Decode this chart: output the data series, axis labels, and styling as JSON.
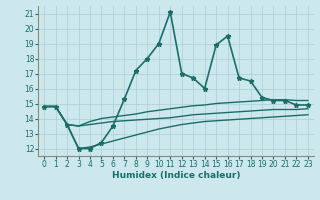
{
  "xlabel": "Humidex (Indice chaleur)",
  "bg_color": "#cde8ec",
  "grid_color": "#aacdd4",
  "line_color": "#1a6e68",
  "x_ticks": [
    0,
    1,
    2,
    3,
    4,
    5,
    6,
    7,
    8,
    9,
    10,
    11,
    12,
    13,
    14,
    15,
    16,
    17,
    18,
    19,
    20,
    21,
    22,
    23
  ],
  "ylim": [
    11.5,
    21.5
  ],
  "xlim": [
    -0.5,
    23.5
  ],
  "yticks": [
    12,
    13,
    14,
    15,
    16,
    17,
    18,
    19,
    20,
    21
  ],
  "series": [
    {
      "x": [
        0,
        1,
        2,
        3,
        4,
        5,
        6,
        7,
        8,
        9,
        10,
        11,
        12,
        13,
        14,
        15,
        16,
        17,
        18,
        19,
        20,
        21,
        22,
        23
      ],
      "y": [
        14.8,
        14.8,
        13.6,
        12.0,
        12.0,
        12.4,
        13.5,
        15.3,
        17.2,
        18.0,
        19.0,
        21.1,
        17.0,
        16.7,
        16.0,
        18.9,
        19.5,
        16.7,
        16.5,
        15.4,
        15.2,
        15.2,
        14.9,
        14.9
      ],
      "marker": true,
      "linewidth": 1.2
    },
    {
      "x": [
        0,
        1,
        2,
        3,
        4,
        5,
        6,
        7,
        8,
        9,
        10,
        11,
        12,
        13,
        14,
        15,
        16,
        17,
        18,
        19,
        20,
        21,
        22,
        23
      ],
      "y": [
        14.8,
        14.8,
        13.6,
        13.5,
        13.8,
        14.0,
        14.1,
        14.2,
        14.3,
        14.45,
        14.55,
        14.65,
        14.75,
        14.85,
        14.9,
        15.0,
        15.05,
        15.1,
        15.15,
        15.2,
        15.25,
        15.25,
        15.2,
        15.2
      ],
      "marker": false,
      "linewidth": 1.0
    },
    {
      "x": [
        0,
        1,
        2,
        3,
        4,
        5,
        6,
        7,
        8,
        9,
        10,
        11,
        12,
        13,
        14,
        15,
        16,
        17,
        18,
        19,
        20,
        21,
        22,
        23
      ],
      "y": [
        14.8,
        14.8,
        13.6,
        13.5,
        13.6,
        13.7,
        13.8,
        13.85,
        13.9,
        13.95,
        14.0,
        14.05,
        14.15,
        14.25,
        14.3,
        14.35,
        14.4,
        14.45,
        14.5,
        14.55,
        14.6,
        14.6,
        14.6,
        14.65
      ],
      "marker": false,
      "linewidth": 1.0
    },
    {
      "x": [
        0,
        1,
        2,
        3,
        4,
        5,
        6,
        7,
        8,
        9,
        10,
        11,
        12,
        13,
        14,
        15,
        16,
        17,
        18,
        19,
        20,
        21,
        22,
        23
      ],
      "y": [
        14.8,
        14.8,
        13.6,
        12.0,
        12.1,
        12.3,
        12.5,
        12.7,
        12.9,
        13.1,
        13.3,
        13.45,
        13.6,
        13.7,
        13.8,
        13.85,
        13.9,
        13.95,
        14.0,
        14.05,
        14.1,
        14.15,
        14.2,
        14.25
      ],
      "marker": false,
      "linewidth": 1.0
    }
  ]
}
